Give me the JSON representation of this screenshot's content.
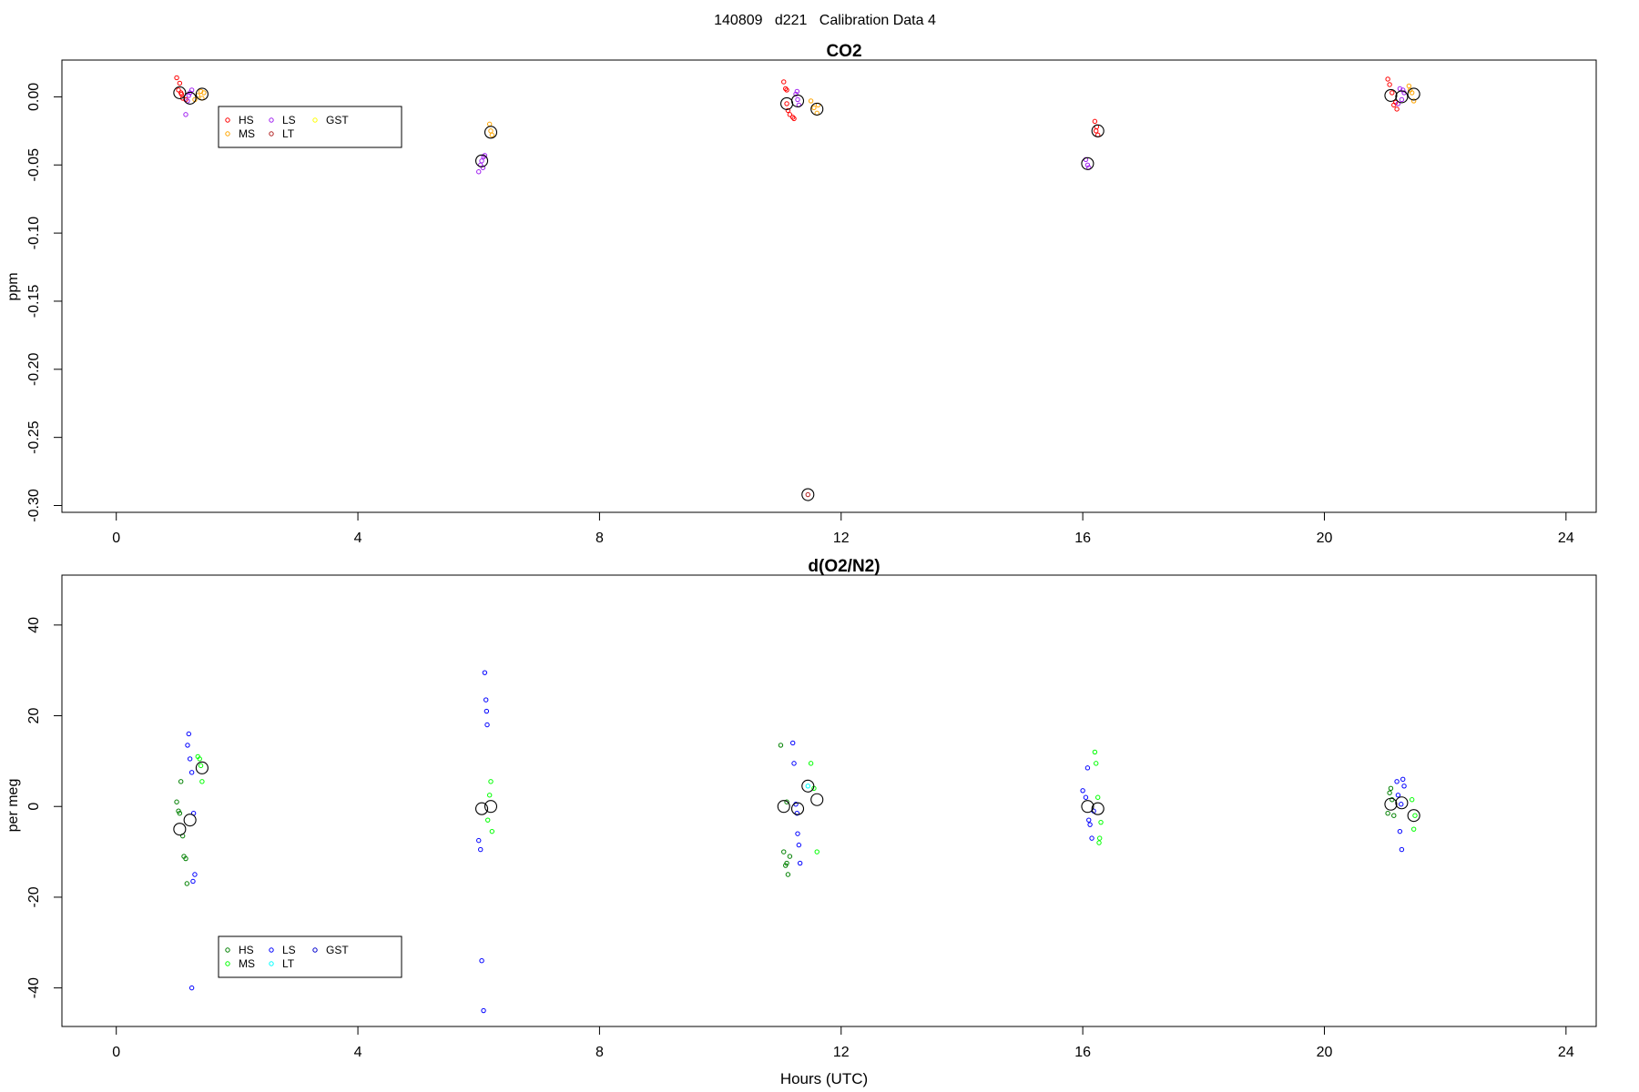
{
  "page_title": "140809   d221   Calibration Data 4",
  "chart_data": [
    {
      "type": "scatter",
      "title": "CO2",
      "xlabel": "",
      "ylabel": "ppm",
      "xlim": [
        -0.9,
        24.5
      ],
      "ylim": [
        -0.305,
        0.027
      ],
      "x_ticks": [
        0,
        4,
        8,
        12,
        16,
        20,
        24
      ],
      "y_ticks": [
        0.0,
        -0.05,
        -0.1,
        -0.15,
        -0.2,
        -0.25,
        -0.3
      ],
      "y_tick_labels": [
        "0.00",
        "-0.05",
        "-0.10",
        "-0.15",
        "-0.20",
        "-0.25",
        "-0.30"
      ],
      "legend": {
        "position": "top-left",
        "entries": [
          {
            "name": "HS",
            "color": "#ff0000"
          },
          {
            "name": "MS",
            "color": "#ffa500"
          },
          {
            "name": "LS",
            "color": "#a020f0"
          },
          {
            "name": "LT",
            "color": "#b22222"
          },
          {
            "name": "GST",
            "color": "#ffff00"
          }
        ]
      },
      "series": [
        {
          "name": "HS",
          "color": "#ff0000",
          "points": [
            [
              1.0,
              0.014
            ],
            [
              1.05,
              0.01
            ],
            [
              1.03,
              0.005
            ],
            [
              1.08,
              0.002
            ],
            [
              1.1,
              -0.001
            ],
            [
              1.15,
              -0.002
            ],
            [
              1.07,
              0.003
            ],
            [
              11.05,
              0.011
            ],
            [
              11.08,
              0.006
            ],
            [
              11.1,
              0.005
            ],
            [
              11.12,
              -0.01
            ],
            [
              11.15,
              -0.013
            ],
            [
              11.2,
              -0.015
            ],
            [
              11.22,
              -0.016
            ],
            [
              11.1,
              -0.005
            ],
            [
              16.2,
              -0.018
            ],
            [
              16.22,
              -0.025
            ],
            [
              16.25,
              -0.028
            ],
            [
              16.23,
              -0.022
            ],
            [
              21.05,
              0.013
            ],
            [
              21.08,
              0.009
            ],
            [
              21.12,
              0.003
            ],
            [
              21.15,
              -0.006
            ],
            [
              21.2,
              -0.009
            ],
            [
              21.18,
              -0.004
            ]
          ]
        },
        {
          "name": "MS",
          "color": "#ffa500",
          "points": [
            [
              1.3,
              -0.002
            ],
            [
              1.35,
              0.001
            ],
            [
              1.4,
              0.004
            ],
            [
              1.45,
              0.003
            ],
            [
              1.42,
              -0.001
            ],
            [
              6.18,
              -0.02
            ],
            [
              6.2,
              -0.025
            ],
            [
              6.22,
              -0.028
            ],
            [
              11.5,
              -0.003
            ],
            [
              11.55,
              -0.008
            ],
            [
              11.6,
              -0.012
            ],
            [
              11.62,
              -0.006
            ],
            [
              21.4,
              0.008
            ],
            [
              21.45,
              0.003
            ],
            [
              21.48,
              -0.003
            ],
            [
              21.42,
              0.005
            ]
          ]
        },
        {
          "name": "LS",
          "color": "#a020f0",
          "points": [
            [
              1.15,
              -0.013
            ],
            [
              1.18,
              -0.003
            ],
            [
              1.2,
              0.001
            ],
            [
              1.25,
              0.005
            ],
            [
              1.22,
              0.003
            ],
            [
              6.0,
              -0.055
            ],
            [
              6.03,
              -0.05
            ],
            [
              6.05,
              -0.047
            ],
            [
              6.08,
              -0.044
            ],
            [
              6.07,
              -0.052
            ],
            [
              6.1,
              -0.043
            ],
            [
              11.25,
              0.002
            ],
            [
              11.28,
              -0.002
            ],
            [
              11.3,
              -0.006
            ],
            [
              11.27,
              0.004
            ],
            [
              16.05,
              -0.046
            ],
            [
              16.08,
              -0.05
            ],
            [
              16.1,
              -0.052
            ],
            [
              21.25,
              0.006
            ],
            [
              21.3,
              0.005
            ],
            [
              21.32,
              0.003
            ],
            [
              21.28,
              -0.002
            ],
            [
              21.22,
              -0.005
            ]
          ]
        },
        {
          "name": "LT",
          "color": "#b22222",
          "points": [
            [
              11.45,
              -0.292
            ]
          ]
        }
      ],
      "means": [
        [
          1.05,
          0.003
        ],
        [
          1.22,
          -0.001
        ],
        [
          1.42,
          0.002
        ],
        [
          6.05,
          -0.047
        ],
        [
          6.2,
          -0.026
        ],
        [
          11.1,
          -0.005
        ],
        [
          11.28,
          -0.003
        ],
        [
          11.6,
          -0.009
        ],
        [
          11.45,
          -0.292
        ],
        [
          16.08,
          -0.049
        ],
        [
          16.25,
          -0.025
        ],
        [
          21.1,
          0.001
        ],
        [
          21.28,
          0.0
        ],
        [
          21.48,
          0.002
        ]
      ]
    },
    {
      "type": "scatter",
      "title": "d(O2/N2)",
      "xlabel": "Hours (UTC)",
      "ylabel": "per meg",
      "xlim": [
        -0.9,
        24.5
      ],
      "ylim": [
        -48.5,
        51
      ],
      "x_ticks": [
        0,
        4,
        8,
        12,
        16,
        20,
        24
      ],
      "y_ticks": [
        40,
        20,
        0,
        -20,
        -40
      ],
      "y_tick_labels": [
        "40",
        "20",
        "0",
        "-20",
        "-40"
      ],
      "legend": {
        "position": "bottom-left",
        "entries": [
          {
            "name": "HS",
            "color": "#008000"
          },
          {
            "name": "MS",
            "color": "#00ff00"
          },
          {
            "name": "LS",
            "color": "#0000ff"
          },
          {
            "name": "LT",
            "color": "#00ffff"
          },
          {
            "name": "GST",
            "color": "#0000cd"
          }
        ]
      },
      "series": [
        {
          "name": "HS",
          "color": "#008000",
          "points": [
            [
              1.0,
              1.0
            ],
            [
              1.03,
              -1.0
            ],
            [
              1.05,
              -1.5
            ],
            [
              1.07,
              5.5
            ],
            [
              1.1,
              -6.5
            ],
            [
              1.12,
              -11.0
            ],
            [
              1.15,
              -11.5
            ],
            [
              1.17,
              -17.0
            ],
            [
              11.0,
              13.5
            ],
            [
              11.05,
              -10.0
            ],
            [
              11.08,
              -13.0
            ],
            [
              11.1,
              -12.5
            ],
            [
              11.12,
              -15.0
            ],
            [
              11.15,
              -11.0
            ],
            [
              11.1,
              1.0
            ],
            [
              21.1,
              4.0
            ],
            [
              21.12,
              1.5
            ],
            [
              21.15,
              -2.0
            ],
            [
              21.08,
              3.0
            ],
            [
              21.05,
              -1.5
            ]
          ]
        },
        {
          "name": "MS",
          "color": "#00ff00",
          "points": [
            [
              1.35,
              11.0
            ],
            [
              1.38,
              10.5
            ],
            [
              1.4,
              9.0
            ],
            [
              1.42,
              5.5
            ],
            [
              6.2,
              5.5
            ],
            [
              6.18,
              2.5
            ],
            [
              6.15,
              -3.0
            ],
            [
              6.22,
              -5.5
            ],
            [
              11.5,
              9.5
            ],
            [
              11.55,
              4.0
            ],
            [
              11.6,
              -10.0
            ],
            [
              16.2,
              12.0
            ],
            [
              16.22,
              9.5
            ],
            [
              16.25,
              2.0
            ],
            [
              16.28,
              -7.0
            ],
            [
              16.27,
              -8.0
            ],
            [
              16.3,
              -3.5
            ],
            [
              21.45,
              1.5
            ],
            [
              21.5,
              -2.0
            ],
            [
              21.48,
              -5.0
            ]
          ]
        },
        {
          "name": "LS",
          "color": "#0000ff",
          "points": [
            [
              1.2,
              16.0
            ],
            [
              1.18,
              13.5
            ],
            [
              1.22,
              10.5
            ],
            [
              1.25,
              7.5
            ],
            [
              1.28,
              -1.5
            ],
            [
              1.3,
              -15.0
            ],
            [
              1.27,
              -16.5
            ],
            [
              1.25,
              -40.0
            ],
            [
              6.0,
              -7.5
            ],
            [
              6.03,
              -9.5
            ],
            [
              6.05,
              -34.0
            ],
            [
              6.08,
              -45.0
            ],
            [
              6.1,
              29.5
            ],
            [
              6.12,
              23.5
            ],
            [
              6.13,
              21.0
            ],
            [
              6.14,
              18.0
            ],
            [
              11.2,
              14.0
            ],
            [
              11.22,
              9.5
            ],
            [
              11.25,
              0.5
            ],
            [
              11.28,
              -6.0
            ],
            [
              11.3,
              -8.5
            ],
            [
              11.32,
              -12.5
            ],
            [
              11.27,
              -1.5
            ],
            [
              16.0,
              3.5
            ],
            [
              16.05,
              2.0
            ],
            [
              16.08,
              8.5
            ],
            [
              16.1,
              -3.0
            ],
            [
              16.12,
              -4.0
            ],
            [
              16.15,
              -7.0
            ],
            [
              16.18,
              -1.0
            ],
            [
              21.2,
              5.5
            ],
            [
              21.22,
              2.5
            ],
            [
              21.25,
              -5.5
            ],
            [
              21.28,
              -9.5
            ],
            [
              21.3,
              6.0
            ],
            [
              21.32,
              4.5
            ],
            [
              21.27,
              0.5
            ]
          ]
        },
        {
          "name": "LT",
          "color": "#00ffff",
          "points": [
            [
              11.45,
              4.5
            ]
          ]
        }
      ],
      "means": [
        [
          1.05,
          -5.0
        ],
        [
          1.22,
          -3.0
        ],
        [
          1.42,
          8.5
        ],
        [
          6.05,
          -0.5
        ],
        [
          6.2,
          0.0
        ],
        [
          11.05,
          0.0
        ],
        [
          11.28,
          -0.5
        ],
        [
          11.45,
          4.5
        ],
        [
          11.6,
          1.5
        ],
        [
          16.08,
          0.0
        ],
        [
          16.25,
          -0.5
        ],
        [
          21.1,
          0.5
        ],
        [
          21.28,
          0.8
        ],
        [
          21.48,
          -2.0
        ]
      ]
    }
  ]
}
